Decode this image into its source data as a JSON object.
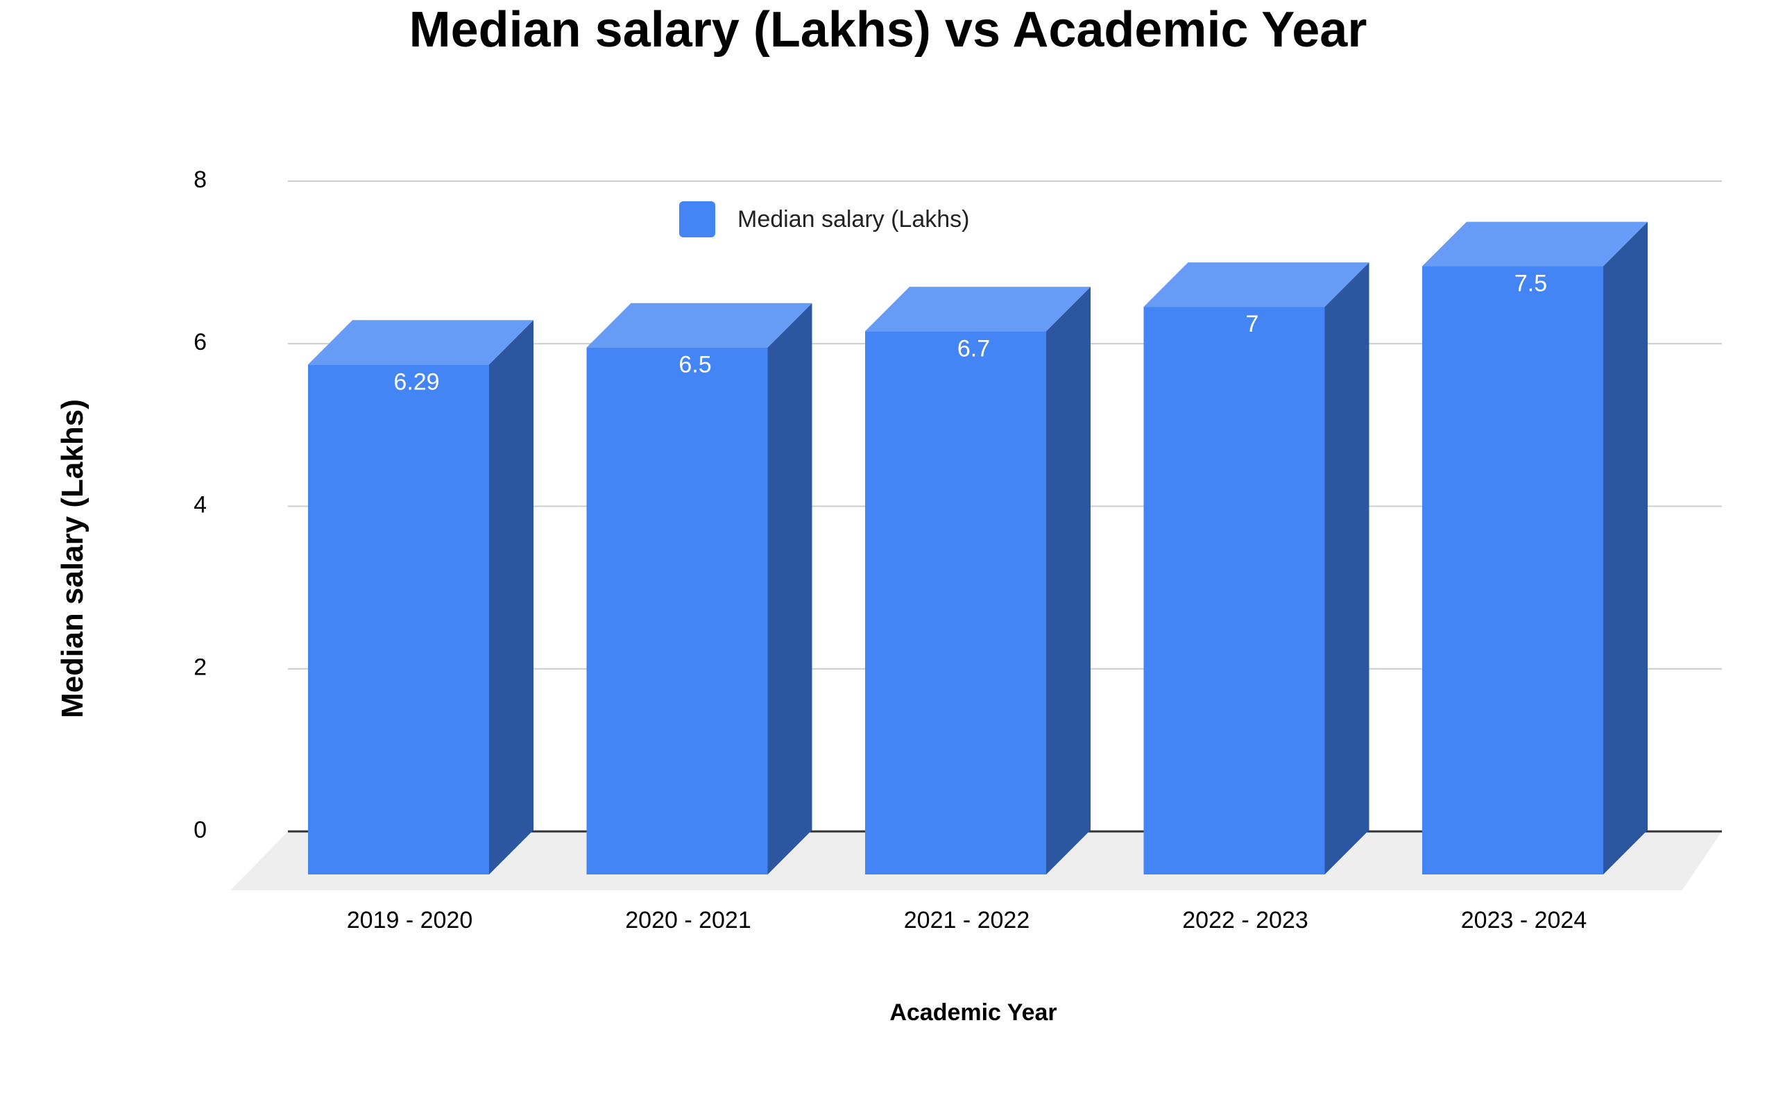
{
  "chart_data": {
    "type": "bar",
    "title": "Median salary (Lakhs) vs Academic Year",
    "xlabel": "Academic Year",
    "ylabel": "Median salary (Lakhs)",
    "categories": [
      "2019 - 2020",
      "2020 - 2021",
      "2021 - 2022",
      "2022 - 2023",
      "2023 - 2024"
    ],
    "series": [
      {
        "name": "Median salary (Lakhs)",
        "values": [
          6.29,
          6.5,
          6.7,
          7,
          7.5
        ],
        "data_labels": [
          "6.29",
          "6.5",
          "6.7",
          "7",
          "7.5"
        ]
      }
    ],
    "ylim": [
      0,
      8
    ],
    "yticks": [
      "0",
      "2",
      "4",
      "6",
      "8"
    ],
    "grid": true,
    "legend_position": "top",
    "style": "3d-column",
    "colors": {
      "front": "#4385F4",
      "top": "#679CF6",
      "side": "#2C56A0",
      "floor": "#EEEEEE",
      "grid": "#CCCCCC",
      "baseline": "#333333"
    }
  }
}
